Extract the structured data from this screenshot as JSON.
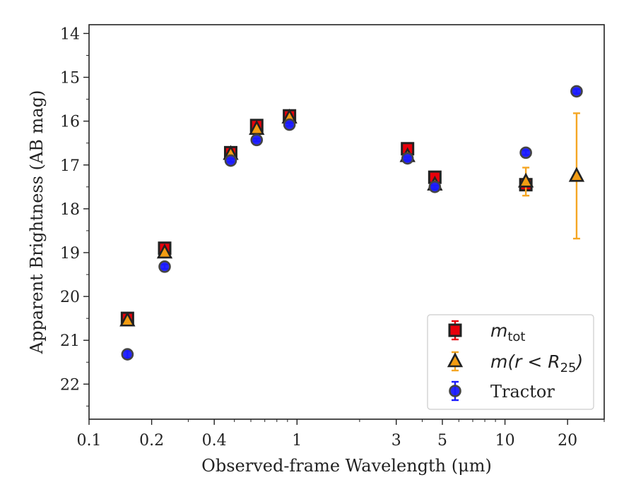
{
  "chart_data": {
    "type": "scatter",
    "xlabel": "Observed-frame Wavelength (μm)",
    "ylabel": "Apparent Brightness (AB mag)",
    "x_scale": "log",
    "xlim": [
      0.1,
      30
    ],
    "ylim": [
      22.8,
      13.8
    ],
    "y_inverted": true,
    "x_ticks": [
      {
        "value": 0.1,
        "label": "0.1"
      },
      {
        "value": 0.2,
        "label": "0.2"
      },
      {
        "value": 0.4,
        "label": "0.4"
      },
      {
        "value": 1,
        "label": "1"
      },
      {
        "value": 3,
        "label": "3"
      },
      {
        "value": 5,
        "label": "5"
      },
      {
        "value": 10,
        "label": "10"
      },
      {
        "value": 20,
        "label": "20"
      }
    ],
    "y_ticks": [
      14,
      15,
      16,
      17,
      18,
      19,
      20,
      21,
      22
    ],
    "legend_position": "lower-right",
    "grid": false,
    "series": [
      {
        "name": "m_tot",
        "legend_main": "m",
        "legend_sub": "tot",
        "marker": "square",
        "face_color": "#e8000b",
        "edge_color": "#222222",
        "error_color": "#e8000b",
        "points": [
          {
            "x": 0.153,
            "y": 20.5,
            "err": 0.08
          },
          {
            "x": 0.231,
            "y": 18.9,
            "err": 0.05
          },
          {
            "x": 0.48,
            "y": 16.72,
            "err": 0.03
          },
          {
            "x": 0.64,
            "y": 16.1,
            "err": 0.03
          },
          {
            "x": 0.92,
            "y": 15.88,
            "err": 0.03
          },
          {
            "x": 3.4,
            "y": 16.63,
            "err": 0.03
          },
          {
            "x": 4.6,
            "y": 17.28,
            "err": 0.03
          },
          {
            "x": 12.6,
            "y": 17.45,
            "err": 0.06
          }
        ]
      },
      {
        "name": "m(r < R_25)",
        "legend_main": "m(r < R",
        "legend_sub": "25",
        "legend_tail": ")",
        "marker": "triangle",
        "face_color": "#f39c12",
        "edge_color": "#222222",
        "error_color": "#f5a623",
        "points": [
          {
            "x": 0.153,
            "y": 20.55,
            "err": 0.05
          },
          {
            "x": 0.231,
            "y": 19.0,
            "err": 0.04
          },
          {
            "x": 0.48,
            "y": 16.75,
            "err": 0.03
          },
          {
            "x": 0.64,
            "y": 16.18,
            "err": 0.03
          },
          {
            "x": 0.92,
            "y": 15.92,
            "err": 0.03
          },
          {
            "x": 3.4,
            "y": 16.8,
            "err": 0.03
          },
          {
            "x": 4.6,
            "y": 17.45,
            "err": 0.03
          },
          {
            "x": 12.6,
            "y": 17.38,
            "err": 0.32
          },
          {
            "x": 22.1,
            "y": 17.25,
            "err": 1.43
          }
        ]
      },
      {
        "name": "Tractor",
        "legend_main": "Tractor",
        "marker": "circle",
        "face_color": "#1a1aff",
        "edge_color": "#444444",
        "error_color": "#1a1aff",
        "points": [
          {
            "x": 0.153,
            "y": 21.32,
            "err": 0.08
          },
          {
            "x": 0.231,
            "y": 19.32,
            "err": 0.05
          },
          {
            "x": 0.48,
            "y": 16.9,
            "err": 0.03
          },
          {
            "x": 0.64,
            "y": 16.43,
            "err": 0.03
          },
          {
            "x": 0.92,
            "y": 16.08,
            "err": 0.03
          },
          {
            "x": 3.4,
            "y": 16.85,
            "err": 0.03
          },
          {
            "x": 4.6,
            "y": 17.5,
            "err": 0.03
          },
          {
            "x": 12.6,
            "y": 16.72,
            "err": 0.05
          },
          {
            "x": 22.1,
            "y": 15.32,
            "err": 0.05
          }
        ]
      }
    ]
  }
}
